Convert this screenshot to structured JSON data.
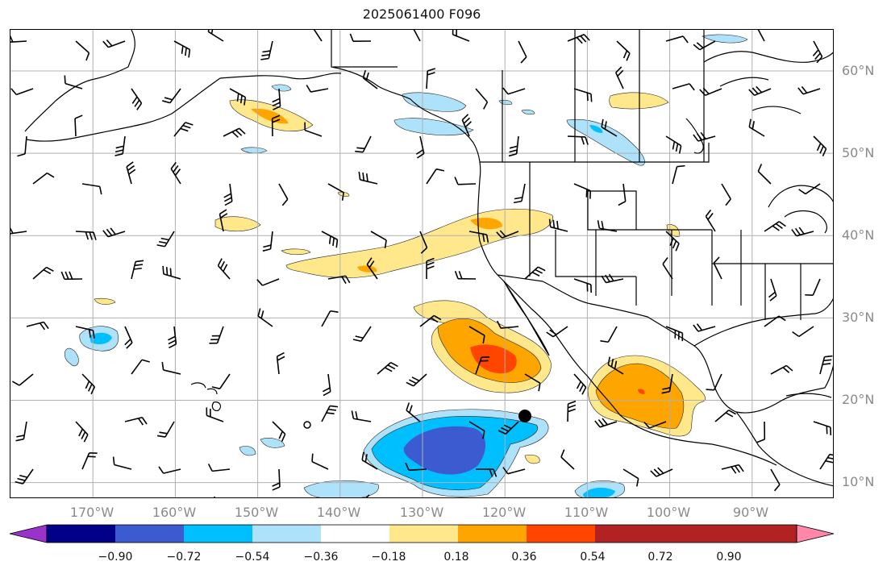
{
  "title": "2025061400 F096",
  "lat_labels": [
    "60°N",
    "50°N",
    "40°N",
    "30°N",
    "20°N",
    "10°N"
  ],
  "lon_labels": [
    "170°W",
    "160°W",
    "150°W",
    "140°W",
    "130°W",
    "120°W",
    "110°W",
    "100°W",
    "90°W"
  ],
  "colorbar": {
    "tick_labels": [
      "−0.90",
      "−0.72",
      "−0.54",
      "−0.36",
      "−0.18",
      "0.18",
      "0.36",
      "0.54",
      "0.72",
      "0.90"
    ],
    "colors": [
      "#9933cc",
      "#000088",
      "#3d5bd1",
      "#00bfff",
      "#aee1fa",
      "#ffffff",
      "#ffe88c",
      "#ffa500",
      "#ff4500",
      "#b22222",
      "#ff88aa"
    ]
  },
  "map_extent": {
    "lon_range": [
      -180,
      -80
    ],
    "lat_range": [
      8,
      65
    ]
  },
  "colors": {
    "grid": "#b0b0b0",
    "coast": "#000000",
    "labels": "#8a8a8a"
  }
}
